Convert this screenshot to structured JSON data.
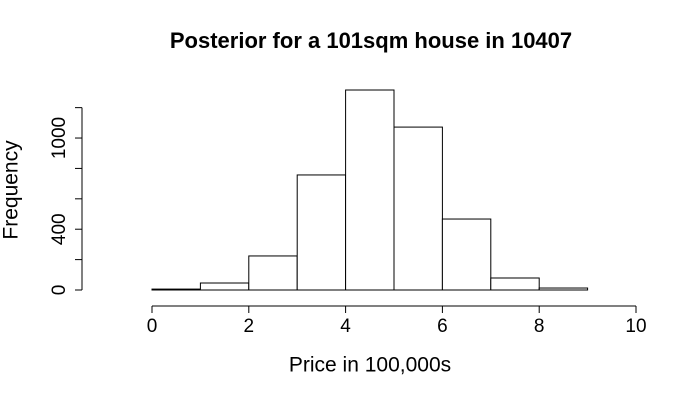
{
  "chart_data": {
    "type": "histogram",
    "title": "Posterior for a 101sqm house in 10407",
    "xlabel": "Price in 100,000s",
    "ylabel": "Frequency",
    "bins": [
      -1,
      0,
      1,
      2,
      3,
      4,
      5,
      6,
      7,
      8,
      9,
      10
    ],
    "values": [
      0,
      6,
      46,
      224,
      757,
      1316,
      1072,
      467,
      79,
      13,
      0
    ],
    "color": "#ffffff",
    "edgecolor": "#000000",
    "xlim": [
      -1,
      10
    ],
    "xticks": [
      0,
      2,
      4,
      6,
      8,
      10
    ],
    "ylim": [
      0,
      1320
    ],
    "yticks": [
      0,
      400,
      1000
    ],
    "yticks_minor": [
      200,
      600,
      800,
      1200
    ]
  }
}
